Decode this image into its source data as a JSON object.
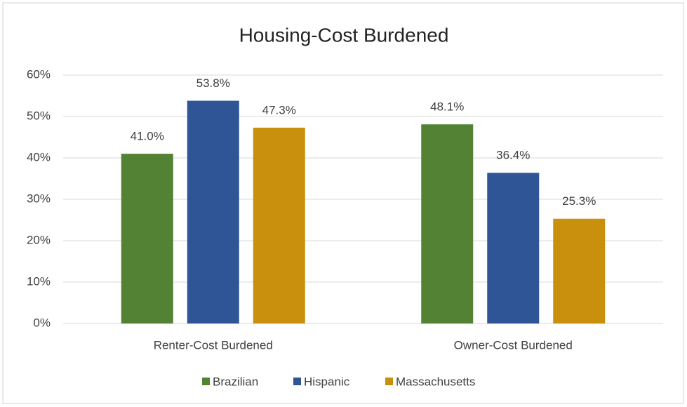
{
  "chart_data": {
    "type": "bar",
    "title": "Housing-Cost Burdened",
    "categories": [
      "Renter-Cost Burdened",
      "Owner-Cost Burdened"
    ],
    "series": [
      {
        "name": "Brazilian",
        "color": "#548235",
        "values": [
          41.0,
          48.1
        ],
        "value_labels": [
          "41.0%",
          "48.1%"
        ]
      },
      {
        "name": "Hispanic",
        "color": "#2f5597",
        "values": [
          53.8,
          36.4
        ],
        "value_labels": [
          "53.8%",
          "36.4%"
        ]
      },
      {
        "name": "Massachusetts",
        "color": "#c8900c",
        "values": [
          47.3,
          25.3
        ],
        "value_labels": [
          "47.3%",
          "25.3%"
        ]
      }
    ],
    "ylim": [
      0,
      60
    ],
    "yticks": [
      {
        "value": 0,
        "label": "0%"
      },
      {
        "value": 10,
        "label": "10%"
      },
      {
        "value": 20,
        "label": "20%"
      },
      {
        "value": 30,
        "label": "30%"
      },
      {
        "value": 40,
        "label": "40%"
      },
      {
        "value": 50,
        "label": "50%"
      },
      {
        "value": 60,
        "label": "60%"
      }
    ],
    "grid": true,
    "legend": "bottom"
  }
}
